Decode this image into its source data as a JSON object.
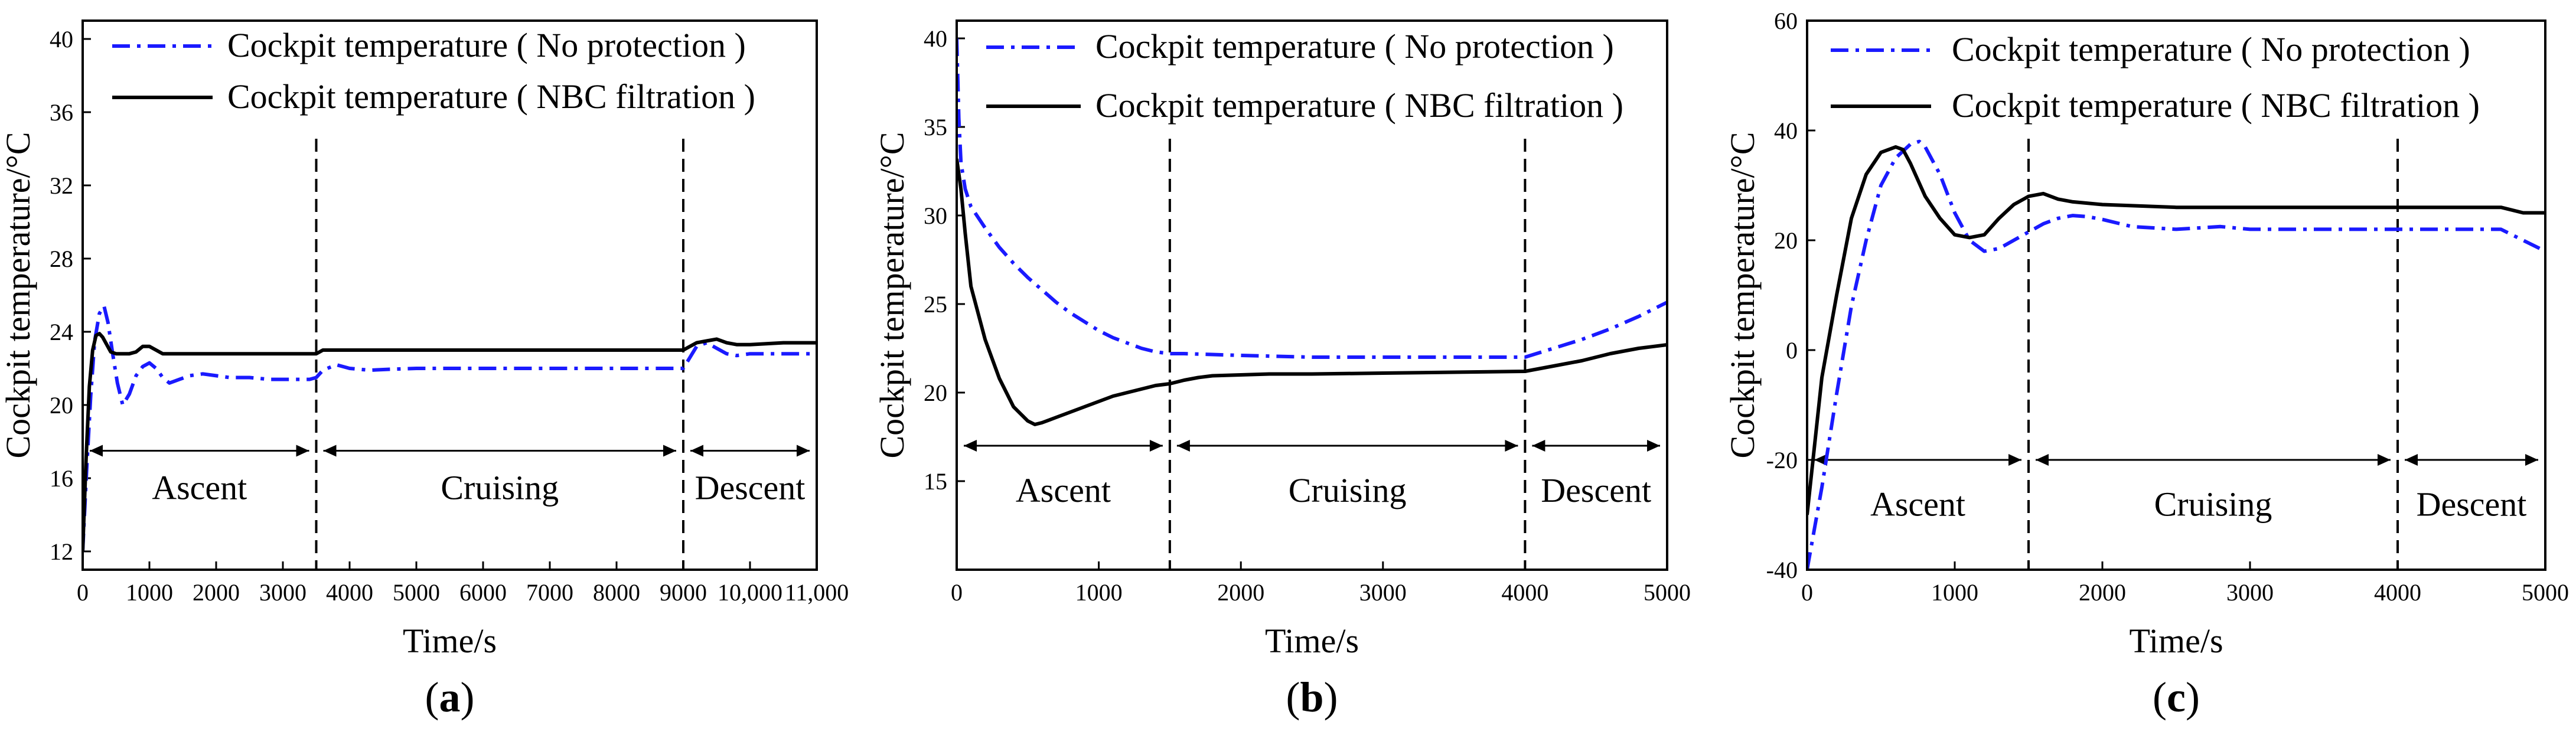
{
  "chart_data": [
    {
      "type": "line",
      "panel_label": "a",
      "xlabel": "Time/s",
      "ylabel": "Cockpit temperature/°C",
      "xlim": [
        0,
        11000
      ],
      "ylim": [
        11,
        41
      ],
      "xticks": [
        0,
        1000,
        2000,
        3000,
        4000,
        5000,
        6000,
        7000,
        8000,
        9000,
        10000,
        11000
      ],
      "xtick_labels": [
        "0",
        "1000",
        "2000",
        "3000",
        "4000",
        "5000",
        "6000",
        "7000",
        "8000",
        "9000",
        "10,000",
        "11,000"
      ],
      "yticks": [
        12,
        16,
        20,
        24,
        28,
        32,
        36,
        40
      ],
      "ytick_labels": [
        "12",
        "16",
        "20",
        "24",
        "28",
        "32",
        "36",
        "40"
      ],
      "legend": [
        "Cockpit temperature ( No protection )",
        "Cockpit temperature ( NBC filtration )"
      ],
      "phase_boundaries": [
        3500,
        9000
      ],
      "phase_arrow_y": 17.5,
      "phase_label_y": 15.5,
      "phases": [
        {
          "label": "Ascent",
          "start": 0,
          "end": 3500
        },
        {
          "label": "Cruising",
          "start": 3500,
          "end": 9000
        },
        {
          "label": "Descent",
          "start": 9000,
          "end": 11000
        }
      ],
      "series": [
        {
          "name": "Cockpit temperature ( No protection )",
          "style": "dashdot",
          "color": "#1a1aff",
          "x": [
            0,
            60,
            120,
            180,
            250,
            320,
            380,
            450,
            520,
            600,
            700,
            800,
            900,
            1000,
            1100,
            1200,
            1300,
            1450,
            1600,
            1800,
            2000,
            2200,
            2500,
            2800,
            3100,
            3400,
            3500,
            3600,
            3800,
            4000,
            4300,
            4600,
            5000,
            6000,
            7000,
            8000,
            9000,
            9100,
            9200,
            9350,
            9500,
            9650,
            9800,
            10000,
            10300,
            10600,
            11000
          ],
          "y": [
            12,
            16.5,
            20.5,
            23.5,
            25.0,
            25.4,
            24.5,
            22.8,
            21.2,
            20.0,
            20.6,
            21.6,
            22.1,
            22.3,
            22.0,
            21.5,
            21.2,
            21.4,
            21.6,
            21.7,
            21.6,
            21.5,
            21.5,
            21.4,
            21.4,
            21.4,
            21.5,
            21.9,
            22.2,
            22.0,
            21.9,
            21.95,
            22.0,
            22.0,
            22.0,
            22.0,
            22.0,
            22.6,
            23.2,
            23.4,
            23.1,
            22.8,
            22.7,
            22.8,
            22.8,
            22.8,
            22.8
          ]
        },
        {
          "name": "Cockpit temperature ( NBC filtration )",
          "style": "solid",
          "color": "#000000",
          "x": [
            0,
            50,
            100,
            150,
            200,
            250,
            300,
            360,
            420,
            500,
            600,
            700,
            800,
            900,
            1000,
            1100,
            1200,
            1400,
            1600,
            2000,
            2500,
            3000,
            3400,
            3500,
            3600,
            3800,
            4000,
            5000,
            6000,
            7000,
            8000,
            9000,
            9100,
            9200,
            9350,
            9500,
            9650,
            9800,
            10000,
            10500,
            11000
          ],
          "y": [
            12,
            17.0,
            21.0,
            23.0,
            23.8,
            23.9,
            23.7,
            23.3,
            22.9,
            22.8,
            22.8,
            22.8,
            22.9,
            23.2,
            23.2,
            23.0,
            22.8,
            22.8,
            22.8,
            22.8,
            22.8,
            22.8,
            22.8,
            22.8,
            23.0,
            23.0,
            23.0,
            23.0,
            23.0,
            23.0,
            23.0,
            23.0,
            23.2,
            23.4,
            23.5,
            23.6,
            23.4,
            23.3,
            23.3,
            23.4,
            23.4
          ]
        }
      ]
    },
    {
      "type": "line",
      "panel_label": "b",
      "xlabel": "Time/s",
      "ylabel": "Cockpit temperature/°C",
      "xlim": [
        0,
        5000
      ],
      "ylim": [
        10,
        41
      ],
      "xticks": [
        0,
        1000,
        2000,
        3000,
        4000,
        5000
      ],
      "xtick_labels": [
        "0",
        "1000",
        "2000",
        "3000",
        "4000",
        "5000"
      ],
      "yticks": [
        15,
        20,
        25,
        30,
        35,
        40
      ],
      "ytick_labels": [
        "15",
        "20",
        "25",
        "30",
        "35",
        "40"
      ],
      "legend": [
        "Cockpit temperature ( No protection )",
        "Cockpit temperature ( NBC filtration )"
      ],
      "phase_boundaries": [
        1500,
        4000
      ],
      "phase_arrow_y": 17.0,
      "phase_label_y": 14.5,
      "phases": [
        {
          "label": "Ascent",
          "start": 0,
          "end": 1500
        },
        {
          "label": "Cruising",
          "start": 1500,
          "end": 4000
        },
        {
          "label": "Descent",
          "start": 4000,
          "end": 5000
        }
      ],
      "series": [
        {
          "name": "Cockpit temperature ( No protection )",
          "style": "dashdot",
          "color": "#1a1aff",
          "x": [
            0,
            15,
            30,
            60,
            100,
            200,
            300,
            400,
            500,
            600,
            700,
            800,
            900,
            1000,
            1100,
            1200,
            1300,
            1400,
            1500,
            1600,
            1800,
            2000,
            2500,
            3000,
            3500,
            4000,
            4200,
            4400,
            4600,
            4800,
            5000
          ],
          "y": [
            40,
            35.5,
            33.0,
            31.5,
            30.5,
            29.3,
            28.2,
            27.3,
            26.5,
            25.8,
            25.1,
            24.5,
            24.0,
            23.5,
            23.1,
            22.8,
            22.5,
            22.3,
            22.2,
            22.2,
            22.15,
            22.1,
            22.0,
            22.0,
            22.0,
            22.0,
            22.5,
            23.0,
            23.6,
            24.3,
            25.1
          ]
        },
        {
          "name": "Cockpit temperature ( NBC filtration )",
          "style": "solid",
          "color": "#000000",
          "x": [
            0,
            30,
            60,
            100,
            150,
            200,
            300,
            400,
            500,
            550,
            600,
            700,
            800,
            900,
            1000,
            1100,
            1200,
            1300,
            1400,
            1500,
            1600,
            1700,
            1800,
            2000,
            2200,
            2500,
            3000,
            3500,
            4000,
            4200,
            4400,
            4600,
            4800,
            5000
          ],
          "y": [
            33.2,
            31.5,
            29.0,
            26.0,
            24.5,
            23.0,
            20.8,
            19.2,
            18.4,
            18.2,
            18.3,
            18.6,
            18.9,
            19.2,
            19.5,
            19.8,
            20.0,
            20.2,
            20.4,
            20.5,
            20.7,
            20.85,
            20.95,
            21.0,
            21.05,
            21.05,
            21.1,
            21.15,
            21.2,
            21.5,
            21.8,
            22.2,
            22.5,
            22.7
          ]
        }
      ]
    },
    {
      "type": "line",
      "panel_label": "c",
      "xlabel": "Time/s",
      "ylabel": "Cockpit temperature/°C",
      "xlim": [
        0,
        5000
      ],
      "ylim": [
        -40,
        60
      ],
      "xticks": [
        0,
        1000,
        2000,
        3000,
        4000,
        5000
      ],
      "xtick_labels": [
        "0",
        "1000",
        "2000",
        "3000",
        "4000",
        "5000"
      ],
      "yticks": [
        -40,
        -20,
        0,
        20,
        40,
        60
      ],
      "ytick_labels": [
        "-40",
        "-20",
        "0",
        "20",
        "40",
        "60"
      ],
      "legend": [
        "Cockpit temperature ( No protection )",
        "Cockpit temperature ( NBC filtration )"
      ],
      "phase_boundaries": [
        1500,
        4000
      ],
      "phase_arrow_y": -20,
      "phase_label_y": -28,
      "phases": [
        {
          "label": "Ascent",
          "start": 0,
          "end": 1500
        },
        {
          "label": "Cruising",
          "start": 1500,
          "end": 4000
        },
        {
          "label": "Descent",
          "start": 4000,
          "end": 5000
        }
      ],
      "series": [
        {
          "name": "Cockpit temperature ( No protection )",
          "style": "dashdot",
          "color": "#1a1aff",
          "x": [
            0,
            100,
            200,
            300,
            400,
            500,
            600,
            700,
            760,
            800,
            900,
            1000,
            1100,
            1200,
            1300,
            1400,
            1500,
            1600,
            1700,
            1800,
            1900,
            2000,
            2200,
            2500,
            2800,
            3000,
            3500,
            4000,
            4500,
            4700,
            4850,
            5000
          ],
          "y": [
            -40,
            -25,
            -8,
            8,
            20,
            30,
            35,
            37.5,
            38.0,
            37.0,
            32.0,
            25.0,
            20.0,
            18.0,
            18.5,
            20.0,
            21.5,
            23.0,
            24.0,
            24.5,
            24.3,
            23.8,
            22.5,
            22.0,
            22.5,
            22.0,
            22.0,
            22.0,
            22.0,
            22.0,
            20.0,
            18.0
          ]
        },
        {
          "name": "Cockpit temperature ( NBC filtration )",
          "style": "solid",
          "color": "#000000",
          "x": [
            0,
            100,
            200,
            300,
            400,
            500,
            600,
            650,
            700,
            800,
            900,
            1000,
            1100,
            1200,
            1300,
            1400,
            1500,
            1600,
            1700,
            1800,
            2000,
            2500,
            3000,
            3500,
            4000,
            4500,
            4700,
            4850,
            5000
          ],
          "y": [
            -30,
            -5,
            10,
            24,
            32,
            36,
            37.0,
            36.5,
            34.0,
            28.0,
            24.0,
            21.0,
            20.5,
            21.0,
            24.0,
            26.5,
            28.0,
            28.5,
            27.5,
            27.0,
            26.5,
            26.0,
            26.0,
            26.0,
            26.0,
            26.0,
            26.0,
            25.0,
            25.0
          ]
        }
      ]
    }
  ]
}
